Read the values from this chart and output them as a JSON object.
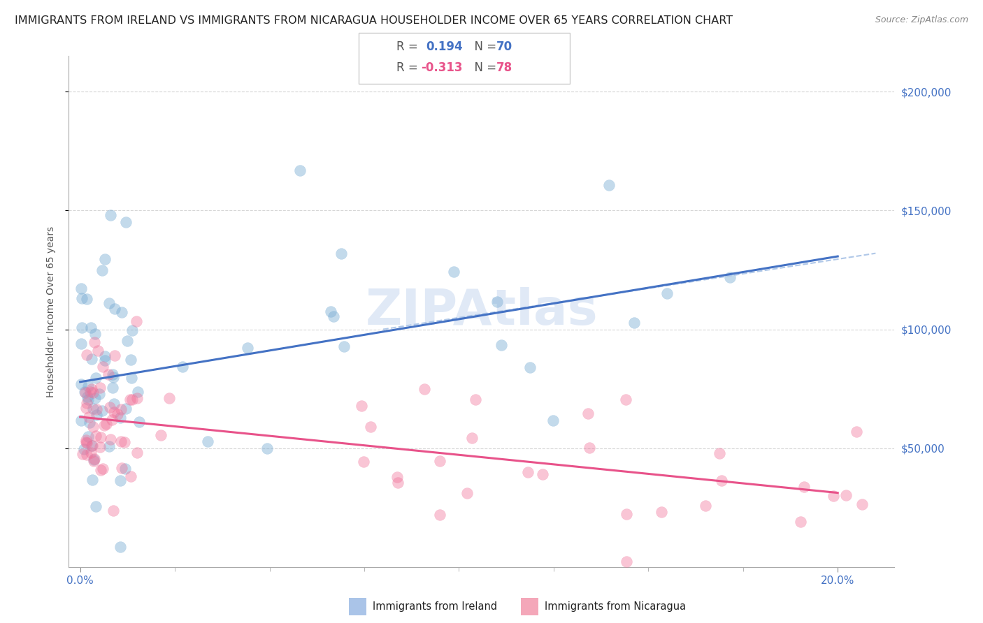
{
  "title": "IMMIGRANTS FROM IRELAND VS IMMIGRANTS FROM NICARAGUA HOUSEHOLDER INCOME OVER 65 YEARS CORRELATION CHART",
  "source": "Source: ZipAtlas.com",
  "ylabel": "Householder Income Over 65 years",
  "xlabel_ticks": [
    "0.0%",
    "20.0%"
  ],
  "xlabel_vals": [
    0.0,
    0.2
  ],
  "ytick_labels": [
    "$50,000",
    "$100,000",
    "$150,000",
    "$200,000"
  ],
  "ytick_vals": [
    50000,
    100000,
    150000,
    200000
  ],
  "ireland_R": "0.194",
  "ireland_N": "70",
  "nicaragua_R": "-0.313",
  "nicaragua_N": "78",
  "ireland_patch_color": "#aac4e8",
  "nicaragua_patch_color": "#f4a7b9",
  "ireland_line_color": "#4472c4",
  "nicaragua_line_color": "#e8538a",
  "ireland_scatter_color": "#7aadd4",
  "nicaragua_scatter_color": "#f07098",
  "dashed_line_color": "#b0c8e8",
  "background_color": "#ffffff",
  "grid_color": "#cccccc",
  "watermark_text": "ZIPAtlas",
  "watermark_color": "#c8d8f0",
  "title_fontsize": 11.5,
  "source_fontsize": 9,
  "tick_fontsize": 11,
  "legend_fontsize": 12,
  "xlim": [
    -0.003,
    0.215
  ],
  "ylim": [
    0,
    215000
  ]
}
